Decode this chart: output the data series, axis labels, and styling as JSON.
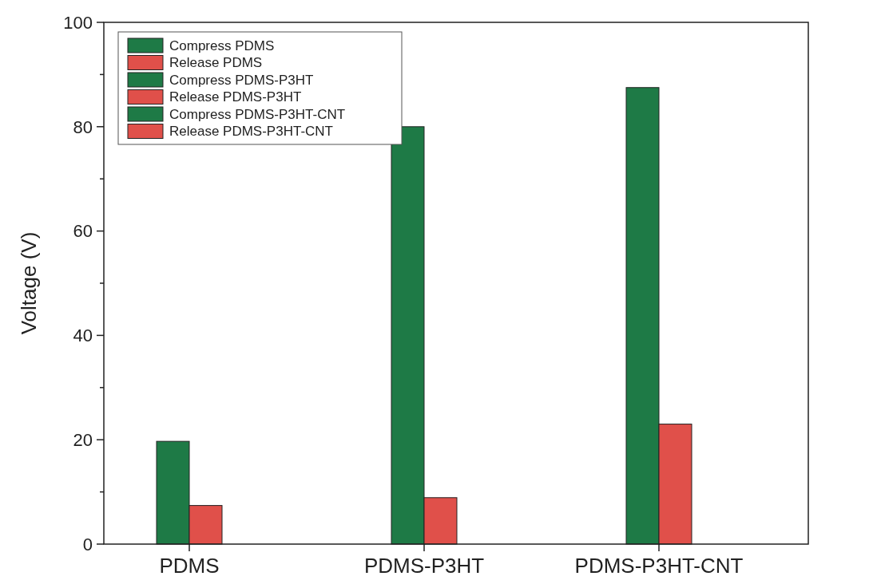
{
  "chart_data": {
    "type": "bar",
    "ylabel": "Voltage (V)",
    "categories": [
      "PDMS",
      "PDMS-P3HT",
      "PDMS-P3HT-CNT"
    ],
    "series": [
      {
        "name": "Compress PDMS",
        "color": "#1e7a46",
        "values": [
          19.7,
          null,
          null
        ]
      },
      {
        "name": "Release PDMS",
        "color": "#e0504a",
        "values": [
          7.4,
          null,
          null
        ]
      },
      {
        "name": "Compress PDMS-P3HT",
        "color": "#1e7a46",
        "values": [
          null,
          80,
          null
        ]
      },
      {
        "name": "Release PDMS-P3HT",
        "color": "#e0504a",
        "values": [
          null,
          8.9,
          null
        ]
      },
      {
        "name": "Compress PDMS-P3HT-CNT",
        "color": "#1e7a46",
        "values": [
          null,
          null,
          87.5
        ]
      },
      {
        "name": "Release PDMS-P3HT-CNT",
        "color": "#e0504a",
        "values": [
          null,
          null,
          23
        ]
      }
    ],
    "ylim": [
      0,
      100
    ],
    "yticks": [
      0,
      {
        "value": 10,
        "label": null
      },
      20,
      {
        "value": 30,
        "label": null
      },
      40,
      {
        "value": 50,
        "label": null
      },
      60,
      {
        "value": 70,
        "label": null
      },
      80,
      {
        "value": 90,
        "label": null
      },
      100
    ],
    "legend": "top left"
  }
}
